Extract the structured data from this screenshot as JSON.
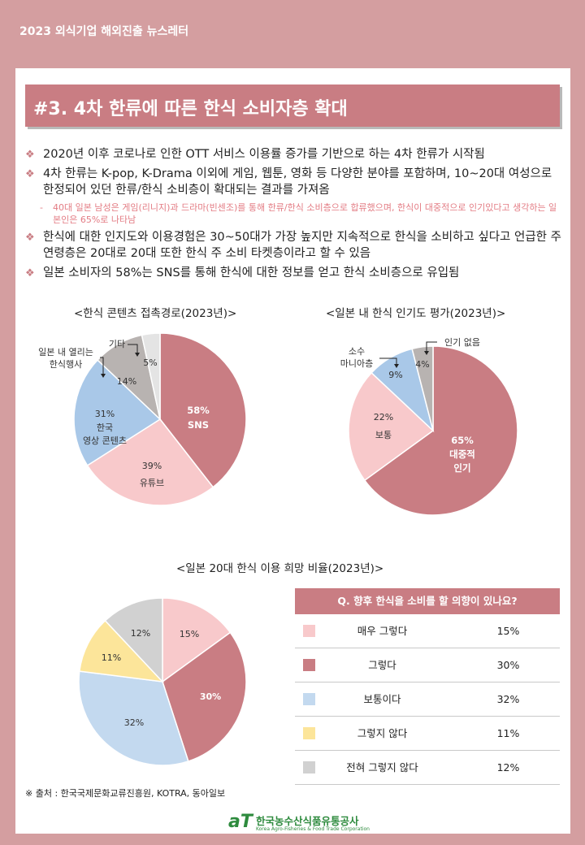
{
  "header": {
    "title": "2023 외식기업 해외진출 뉴스레터"
  },
  "section": {
    "title": "#3. 4차 한류에 따른 한식 소비자층 확대"
  },
  "bullets": [
    "2020년 이후 코로나로 인한 OTT 서비스 이용률 증가를 기반으로 하는 4차 한류가 시작됨",
    "4차 한류는 K-pop, K-Drama 이외에 게임, 웹툰, 영화 등 다양한 분야를 포함하며, 10~20대 여성으로 한정되어 있던 한류/한식 소비층이 확대되는 결과를 가져옴",
    "한식에 대한 인지도와 이용경험은 30~50대가 가장 높지만 지속적으로 한식을 소비하고 싶다고 언급한 주 연령층은 20대로 20대 또한 한식 주 소비 타켓층이라고 할 수 있음",
    "일본 소비자의 58%는 SNS를 통해 한식에 대한 정보를 얻고 한식 소비층으로 유입됨"
  ],
  "sub_note": "40대 일본 남성은 게임(리니지)과 드라마(빈센조)를 통해 한류/한식 소비층으로 합류했으며, 한식이 대중적으로 인기있다고 생각하는 일본인은 65%로 나타남",
  "colors": {
    "accent": "#c97d83",
    "pink": "#f8c9cb",
    "blue": "#a9c8e8",
    "gray": "#b8b3b1",
    "light_gray": "#e4e4e4",
    "yellow": "#fce59a",
    "light_blue": "#c3d9ef",
    "silver": "#d1d1d1"
  },
  "chart_data": [
    {
      "type": "pie",
      "title": "<한식 콘텐츠 접촉경로(2023년)>",
      "slices": [
        {
          "label": "SNS",
          "value": 58,
          "display": "58%",
          "color": "#c97d83"
        },
        {
          "label": "유튜브",
          "value": 39,
          "display": "39%",
          "color": "#f8c9cb"
        },
        {
          "label": "한국 영상 콘텐츠",
          "value": 31,
          "display": "31%",
          "color": "#a9c8e8"
        },
        {
          "label": "일본 내 열리는 한식행사",
          "value": 14,
          "display": "14%",
          "color": "#b8b3b1"
        },
        {
          "label": "기타",
          "value": 5,
          "display": "5%",
          "color": "#e4e4e4"
        }
      ]
    },
    {
      "type": "pie",
      "title": "<일본 내 한식 인기도 평가(2023년)>",
      "slices": [
        {
          "label": "대중적 인기",
          "value": 65,
          "display": "65%",
          "color": "#c97d83"
        },
        {
          "label": "보통",
          "value": 22,
          "display": "22%",
          "color": "#f8c9cb"
        },
        {
          "label": "소수 마니아층",
          "value": 9,
          "display": "9%",
          "color": "#a9c8e8"
        },
        {
          "label": "인기 없음",
          "value": 4,
          "display": "4%",
          "color": "#b8b3b1"
        }
      ]
    },
    {
      "type": "pie",
      "title": "<일본 20대 한식 이용 희망 비율(2023년)>",
      "question": "Q. 향후 한식을 소비를 할 의향이 있나요?",
      "slices": [
        {
          "label": "매우 그렇다",
          "value": 15,
          "display": "15%",
          "color": "#f8c9cb"
        },
        {
          "label": "그렇다",
          "value": 30,
          "display": "30%",
          "color": "#c97d83"
        },
        {
          "label": "보통이다",
          "value": 32,
          "display": "32%",
          "color": "#c3d9ef"
        },
        {
          "label": "그렇지 않다",
          "value": 11,
          "display": "11%",
          "color": "#fce59a"
        },
        {
          "label": "전혀 그렇지 않다",
          "value": 12,
          "display": "12%",
          "color": "#d1d1d1"
        }
      ]
    }
  ],
  "source": "※ 출처 : 한국국제문화교류진흥원, KOTRA, 동아일보",
  "logo": {
    "mark": "aT",
    "name_ko": "한국농수산식품유통공사",
    "name_en": "Korea Agro-Fisheries & Food Trade Corporation"
  }
}
